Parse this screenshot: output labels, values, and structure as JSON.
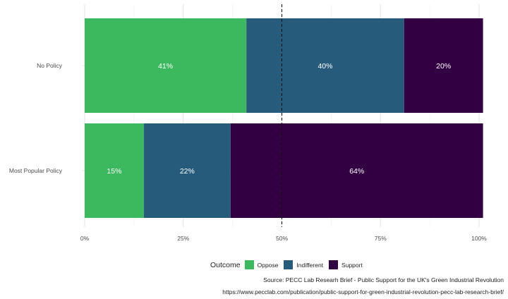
{
  "chart_data": {
    "type": "bar",
    "orientation": "horizontal",
    "stacked": true,
    "categories": [
      "No Policy",
      "Most Popular Policy"
    ],
    "series": [
      {
        "name": "Oppose",
        "values": [
          41,
          15
        ],
        "labels": [
          "41%",
          "15%"
        ],
        "color": "#3cb95e"
      },
      {
        "name": "Indifferent",
        "values": [
          40,
          22
        ],
        "labels": [
          "40%",
          "22%"
        ],
        "color": "#275b7c"
      },
      {
        "name": "Support",
        "values": [
          20,
          64
        ],
        "labels": [
          "20%",
          "64%"
        ],
        "color": "#320042"
      }
    ],
    "x_ticks": [
      "0%",
      "25%",
      "50%",
      "75%",
      "100%"
    ],
    "xlim": [
      0,
      100
    ],
    "reference_line": {
      "x": 50,
      "style": "dashed"
    },
    "grid": true,
    "legend_title": "Outcome",
    "legend_position": "bottom"
  },
  "captions": {
    "source": "Source: PECC Lab Researh Brief - Public Support for the UK's Green Industrial Revolution",
    "url": "https://www.pecclab.com/publication/public-support-for-green-industrial-revolution-pecc-lab-research-brief/"
  }
}
